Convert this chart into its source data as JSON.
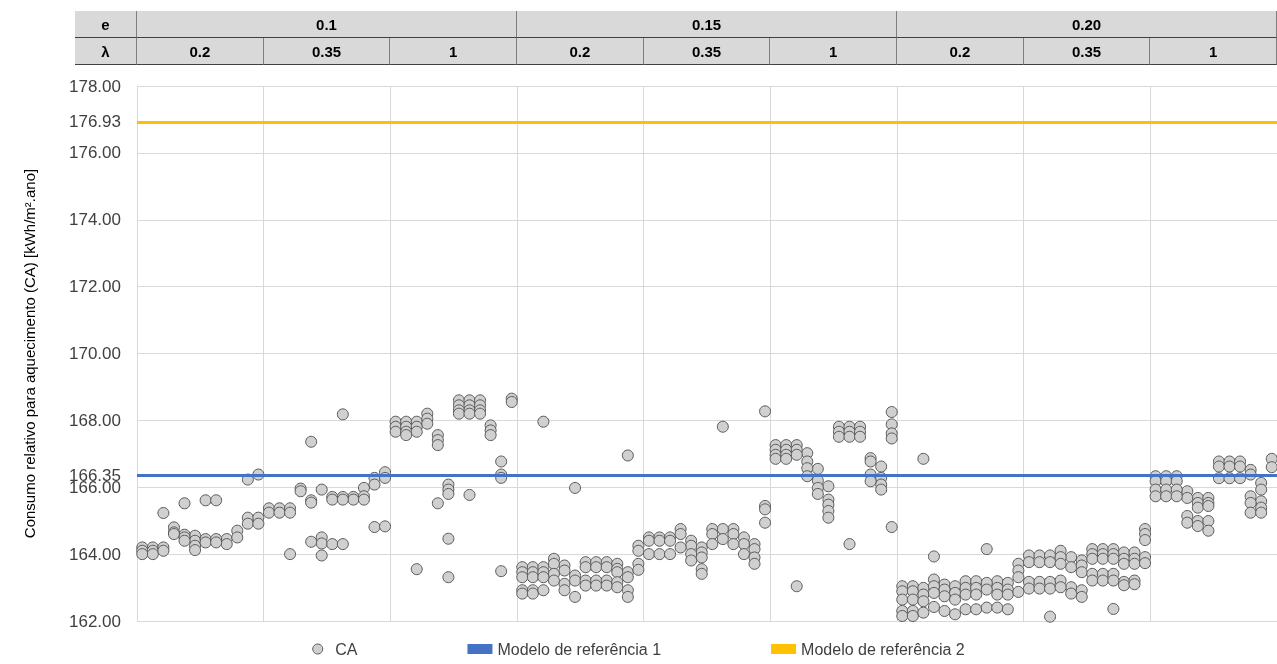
{
  "chart_data": {
    "type": "scatter",
    "ylabel": "Consumo relativo para aquecimento (CA) [kWh/m².ano]",
    "annotations": [
      "e",
      "0.1",
      "0.15",
      "0.20",
      "λ",
      "0.2",
      "0.35",
      "1",
      "0.2",
      "0.35",
      "1",
      "0.2",
      "0.35",
      "1"
    ],
    "categories": [
      null,
      null,
      null,
      null,
      null,
      null,
      null,
      null,
      null,
      null,
      null,
      null,
      null,
      null,
      null,
      null,
      null,
      null,
      null,
      null,
      null,
      null,
      null,
      null,
      null,
      null,
      null,
      null,
      null,
      null,
      null,
      null,
      null,
      null,
      null,
      null,
      null,
      null,
      null,
      null,
      null,
      null,
      null,
      null,
      null,
      null,
      null,
      null,
      null,
      null,
      null,
      null,
      null,
      null,
      null,
      null,
      null,
      null,
      null,
      null,
      null,
      null,
      null,
      null,
      null,
      null,
      null,
      null,
      null,
      null,
      null,
      null,
      null,
      null,
      null,
      null,
      null,
      null,
      null,
      null,
      null,
      null,
      null,
      null,
      null,
      null,
      null,
      null,
      null,
      null,
      null,
      null,
      null,
      null,
      null,
      null,
      null,
      null,
      null,
      null,
      null,
      null,
      null,
      null,
      null,
      null,
      null,
      null
    ],
    "ylim": [
      162,
      178
    ],
    "yticks": [
      {
        "value": 162,
        "label": "162.00"
      },
      {
        "value": 164,
        "label": "164.00"
      },
      {
        "value": 166,
        "label": "166.00"
      },
      {
        "value": 166.35,
        "label": "166.35"
      },
      {
        "value": 168,
        "label": "168.00"
      },
      {
        "value": 170,
        "label": "170.00"
      },
      {
        "value": 172,
        "label": "172.00"
      },
      {
        "value": 174,
        "label": "174.00"
      },
      {
        "value": 176,
        "label": "176.00"
      },
      {
        "value": 176.93,
        "label": "176.93"
      },
      {
        "value": 178,
        "label": "178.00"
      }
    ],
    "tick_labels": "y",
    "grid": true,
    "legend": "bottom",
    "marker": "circle",
    "ref_lines": [
      {
        "axis": "y",
        "value": 166.35,
        "label": "Modelo de referência 1",
        "color": "#4472c4"
      },
      {
        "axis": "y",
        "value": 176.93,
        "label": "Modelo de referência 2",
        "color": "#ffc000"
      }
    ],
    "series": [
      {
        "name": "CA",
        "color": "#d0d0d0",
        "values": [
          164.2,
          164.2,
          165.23,
          164.8,
          165.52,
          164.55,
          165.61,
          165.61,
          164.45,
          164.7,
          166.23,
          166.38,
          165.37,
          165.37,
          165.37,
          165.96,
          167.36,
          165.93,
          165.71,
          168.18,
          165.71,
          165.98,
          166.28,
          166.45,
          167.96,
          167.96,
          167.96,
          168.2,
          167.56,
          166.08,
          168.6,
          168.6,
          168.6,
          167.85,
          166.77,
          168.65,
          163.61,
          163.61,
          167.96,
          163.86,
          163.66,
          165.98,
          163.76,
          163.76,
          163.76,
          163.71,
          166.95,
          164.25,
          164.5,
          164.5,
          164.5,
          164.75,
          164.4,
          164.2,
          164.75,
          167.81,
          164.75,
          164.5,
          164.3,
          168.27,
          167.26,
          167.26,
          167.26,
          167.02,
          166.55,
          166.03,
          167.81,
          167.81,
          167.81,
          166.87,
          166.62,
          168.25,
          163.04,
          163.04,
          166.85,
          163.93,
          163.09,
          163.04,
          163.19,
          163.19,
          164.15,
          163.19,
          163.14,
          163.71,
          163.96,
          163.96,
          163.96,
          164.1,
          163.91,
          163.81,
          164.15,
          164.15,
          164.15,
          164.05,
          164.05,
          164.75,
          166.33,
          166.33,
          166.33,
          165.88,
          165.68,
          165.68,
          166.77,
          166.77,
          166.77,
          166.52,
          166.13,
          166.85
        ]
      },
      {
        "color": "#d0d0d0",
        "values": [
          164.1,
          164.1,
          164.2,
          164.65,
          164.58,
          164.4,
          164.45,
          164.45,
          164.3,
          164.5,
          165.09,
          165.09,
          165.24,
          165.24,
          165.24,
          165.88,
          165.61,
          164.5,
          165.63,
          165.71,
          165.63,
          165.73,
          166.08,
          166.28,
          167.81,
          167.81,
          167.81,
          168.05,
          167.41,
          165.93,
          168.45,
          168.45,
          168.45,
          167.7,
          166.38,
          168.55,
          163.46,
          163.46,
          163.61,
          163.71,
          163.51,
          163.36,
          163.61,
          163.61,
          163.61,
          163.56,
          163.46,
          164.1,
          164.4,
          164.4,
          164.4,
          164.6,
          164.25,
          164.05,
          164.6,
          164.75,
          164.6,
          164.3,
          164.15,
          165.44,
          167.12,
          167.12,
          167.12,
          166.77,
          166.2,
          165.63,
          167.66,
          167.66,
          167.66,
          166.77,
          166.28,
          167.88,
          162.89,
          162.89,
          162.99,
          163.24,
          162.94,
          162.84,
          162.99,
          162.99,
          163.14,
          162.99,
          162.94,
          163.51,
          163.76,
          163.76,
          163.76,
          163.91,
          163.61,
          163.66,
          164.0,
          164.0,
          164.0,
          163.86,
          163.86,
          164.6,
          166.18,
          166.18,
          166.18,
          165.68,
          165.53,
          165.53,
          166.62,
          166.62,
          166.62,
          166.38,
          165.93,
          166.6
        ]
      },
      {
        "color": "#d0d0d0",
        "values": [
          164.0,
          164.0,
          164.1,
          164.6,
          164.5,
          164.25,
          164.35,
          164.35,
          null,
          null,
          164.91,
          164.91,
          null,
          null,
          164.0,
          null,
          165.54,
          164.32,
          164.3,
          165.63,
          null,
          165.63,
          164.81,
          164.83,
          167.66,
          167.66,
          167.66,
          167.9,
          167.26,
          165.8,
          168.3,
          168.3,
          168.3,
          167.56,
          166.28,
          null,
          163.31,
          163.31,
          163.46,
          163.41,
          163.11,
          163.21,
          163.21,
          163.21,
          163.21,
          163.46,
          163.31,
          163.71,
          164.0,
          164.0,
          164.0,
          164.2,
          164.0,
          163.9,
          164.3,
          164.45,
          164.3,
          164.0,
          163.9,
          165.34,
          166.97,
          166.97,
          166.97,
          166.57,
          165.98,
          165.48,
          167.51,
          167.51,
          167.51,
          166.38,
          166.08,
          167.61,
          162.64,
          162.64,
          162.79,
          163.04,
          162.74,
          162.64,
          162.79,
          162.79,
          162.94,
          162.79,
          162.79,
          163.31,
          163.17,
          163.17,
          163.17,
          163.71,
          163.01,
          163.46,
          163.86,
          163.86,
          163.86,
          163.71,
          163.71,
          164.42,
          165.93,
          165.93,
          165.93,
          165.14,
          165.39,
          165.44,
          166.27,
          166.27,
          166.27,
          165.73,
          165.58,
          null
        ]
      },
      {
        "color": "#d0d0d0",
        "values": [
          null,
          null,
          null,
          null,
          164.4,
          164.12,
          null,
          null,
          null,
          null,
          null,
          null,
          null,
          null,
          null,
          null,
          164.37,
          163.96,
          null,
          164.3,
          null,
          null,
          null,
          null,
          null,
          167.56,
          163.55,
          null,
          165.52,
          164.46,
          168.2,
          168.2,
          168.2,
          null,
          163.49,
          null,
          162.92,
          162.92,
          163.31,
          163.21,
          162.92,
          162.72,
          163.06,
          163.06,
          163.06,
          163.16,
          162.92,
          163.53,
          null,
          null,
          null,
          null,
          163.81,
          163.55,
          null,
          null,
          null,
          null,
          163.71,
          164.94,
          166.85,
          166.85,
          163.04,
          166.33,
          165.8,
          165.29,
          null,
          164.3,
          null,
          166.18,
          165.93,
          167.46,
          162.3,
          162.3,
          162.59,
          162.84,
          162.3,
          162.2,
          162.35,
          162.35,
          162.4,
          162.4,
          162.35,
          162.87,
          162.97,
          162.97,
          162.97,
          163.21,
          162.82,
          162.92,
          163.41,
          163.41,
          163.41,
          163.17,
          163.21,
          163.91,
          165.73,
          165.73,
          165.73,
          164.94,
          164.99,
          164.99,
          null,
          null,
          null,
          165.53,
          165.39,
          null
        ]
      },
      {
        "color": "#d0d0d0",
        "values": [
          null,
          null,
          null,
          null,
          null,
          null,
          null,
          null,
          null,
          null,
          null,
          null,
          null,
          null,
          null,
          null,
          null,
          null,
          null,
          null,
          null,
          null,
          null,
          null,
          null,
          null,
          null,
          null,
          null,
          163.31,
          null,
          165.77,
          null,
          null,
          null,
          null,
          162.82,
          162.82,
          162.92,
          null,
          null,
          null,
          null,
          null,
          null,
          163.01,
          162.72,
          null,
          null,
          null,
          null,
          null,
          null,
          163.41,
          null,
          null,
          null,
          null,
          null,
          null,
          null,
          null,
          null,
          null,
          null,
          165.09,
          null,
          null,
          null,
          null,
          null,
          164.81,
          162.15,
          162.15,
          162.25,
          162.42,
          null,
          null,
          null,
          null,
          null,
          null,
          null,
          null,
          null,
          null,
          162.13,
          163.01,
          null,
          162.72,
          163.21,
          163.21,
          163.21,
          163.07,
          163.1,
          163.73,
          null,
          null,
          null,
          null,
          164.84,
          164.7,
          null,
          null,
          null,
          165.24,
          165.24,
          null
        ]
      },
      {
        "color": "#d0d0d0",
        "values": [
          null,
          null,
          null,
          null,
          null,
          null,
          null,
          null,
          null,
          null,
          null,
          null,
          null,
          null,
          null,
          null,
          null,
          null,
          null,
          null,
          null,
          null,
          null,
          null,
          null,
          null,
          null,
          null,
          null,
          null,
          null,
          null,
          null,
          null,
          null,
          null,
          null,
          null,
          null,
          null,
          null,
          null,
          null,
          null,
          null,
          null,
          null,
          null,
          null,
          null,
          null,
          null,
          null,
          null,
          null,
          null,
          null,
          null,
          null,
          null,
          null,
          null,
          null,
          null,
          null,
          null,
          null,
          null,
          null,
          null,
          null,
          null,
          null,
          null,
          null,
          null,
          null,
          null,
          null,
          null,
          null,
          null,
          null,
          null,
          null,
          null,
          null,
          null,
          null,
          null,
          null,
          null,
          162.36,
          null,
          null,
          null,
          null,
          null,
          null,
          null,
          null,
          null,
          null,
          null,
          null,
          null,
          null,
          null
        ]
      }
    ]
  }
}
